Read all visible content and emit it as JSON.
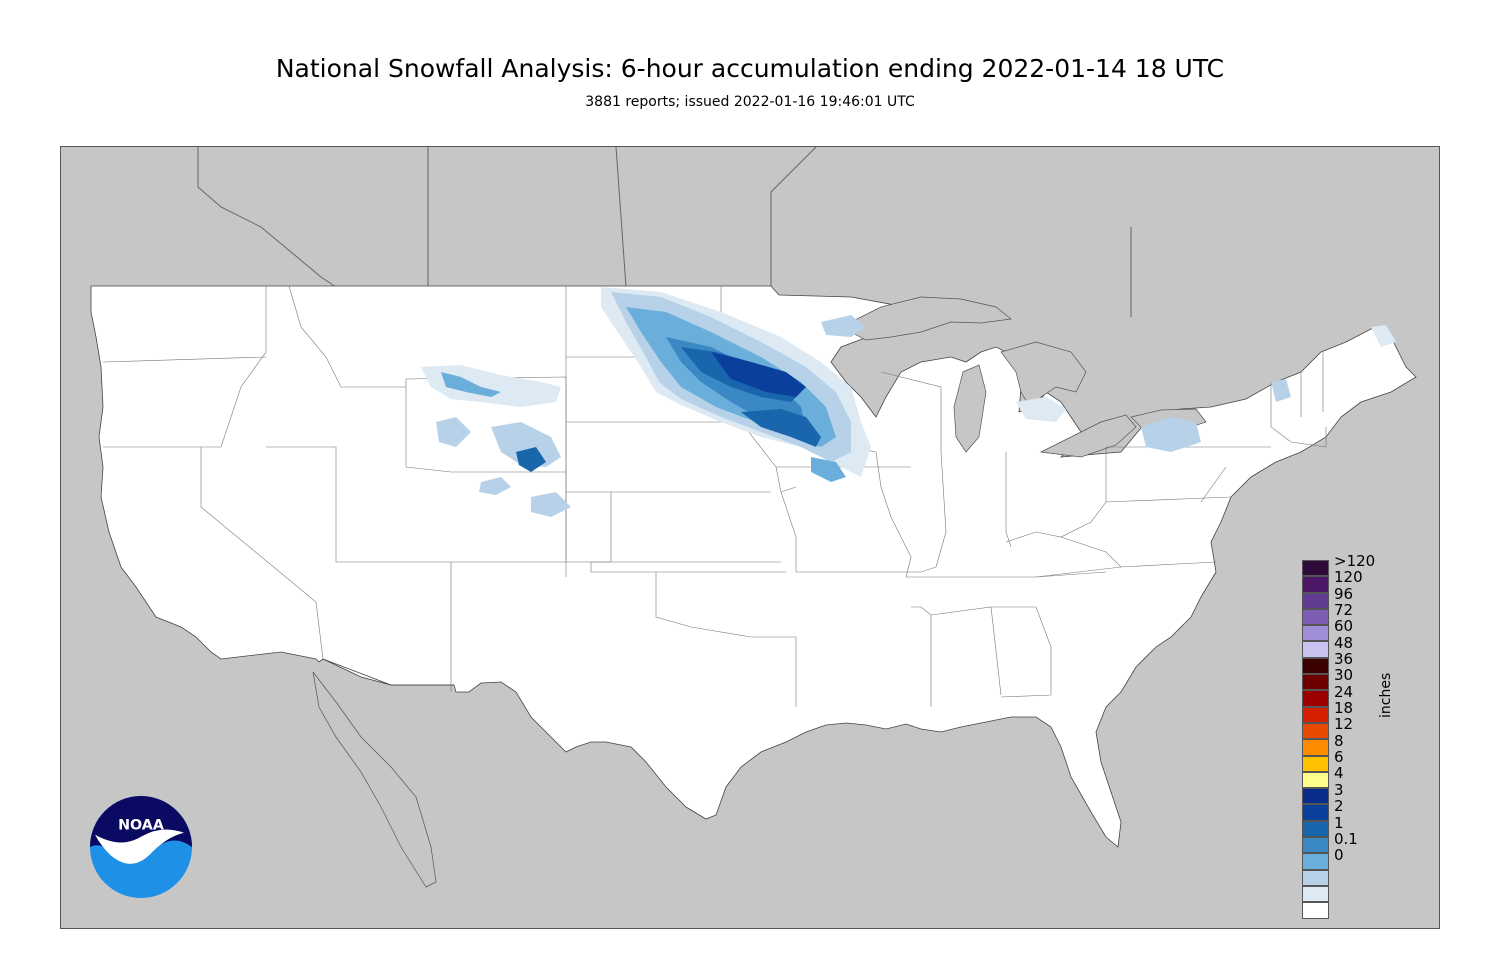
{
  "header": {
    "title": "National Snowfall Analysis: 6-hour accumulation ending 2022-01-14 18 UTC",
    "subtitle": "3881 reports; issued 2022-01-16 19:46:01 UTC"
  },
  "map": {
    "background_color": "#c6c6c6",
    "land_color": "#ffffff",
    "boundary_color": "#666666"
  },
  "legend": {
    "units": "inches",
    "levels": [
      {
        "label": ">120",
        "color": "#2d0a3a"
      },
      {
        "label": "120",
        "color": "#4c1766"
      },
      {
        "label": "96",
        "color": "#5f3b91"
      },
      {
        "label": "72",
        "color": "#7d5cb3"
      },
      {
        "label": "60",
        "color": "#a08fd6"
      },
      {
        "label": "48",
        "color": "#c9c3f2"
      },
      {
        "label": "36",
        "color": "#3b0000"
      },
      {
        "label": "30",
        "color": "#6e0000"
      },
      {
        "label": "24",
        "color": "#9e0000"
      },
      {
        "label": "18",
        "color": "#d42000"
      },
      {
        "label": "12",
        "color": "#e84a00"
      },
      {
        "label": "8",
        "color": "#fd8c00"
      },
      {
        "label": "6",
        "color": "#ffc200"
      },
      {
        "label": "4",
        "color": "#fffe8a"
      },
      {
        "label": "3",
        "color": "#082d8a"
      },
      {
        "label": "2",
        "color": "#0a3f9c"
      },
      {
        "label": "1",
        "color": "#1966ad"
      },
      {
        "label": "0.1",
        "color": "#3a88c4"
      },
      {
        "label": "0",
        "color": "#6aaedb"
      }
    ],
    "extra_colors": [
      "#b7d2e8",
      "#dde9f3",
      "#ffffff"
    ]
  },
  "logo": {
    "text": "NOAA"
  }
}
